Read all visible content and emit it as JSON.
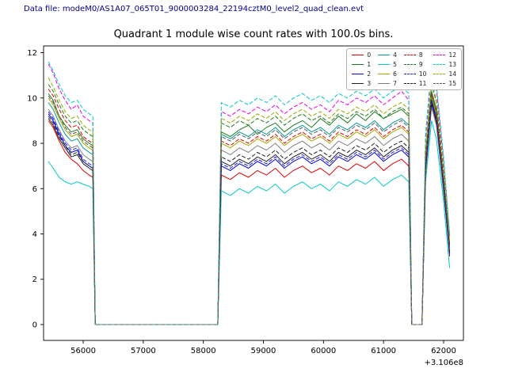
{
  "header": {
    "data_file_label": "Data file: modeM0/AS1A07_065T01_9000003284_22194cztM0_level2_quad_clean.evt"
  },
  "chart_data": {
    "type": "line",
    "title": "Quadrant 1 module wise count rates with 100.0s bins.",
    "xlabel": "",
    "ylabel": "",
    "x_axis_offset": "+3.106e8",
    "xlim": [
      55340,
      62330
    ],
    "ylim": [
      -0.7,
      12.3
    ],
    "xticks": [
      56000,
      57000,
      58000,
      59000,
      60000,
      61000,
      62000
    ],
    "yticks": [
      0,
      2,
      4,
      6,
      8,
      10,
      12
    ],
    "grid": false,
    "legend": {
      "position": "upper right",
      "ncol": 4
    },
    "x": [
      55420,
      55500,
      55600,
      55700,
      55800,
      55900,
      56000,
      56100,
      56160,
      56200,
      58240,
      58300,
      58450,
      58600,
      58750,
      58900,
      59050,
      59200,
      59350,
      59500,
      59650,
      59800,
      59950,
      60100,
      60250,
      60400,
      60550,
      60700,
      60850,
      61000,
      61150,
      61300,
      61420,
      61470,
      61640,
      61700,
      61800,
      61880,
      62000,
      62100
    ],
    "series": [
      {
        "name": "0",
        "color": "#dc0000",
        "dash": "solid",
        "values": [
          9.0,
          8.7,
          8.1,
          7.6,
          7.3,
          7.1,
          6.8,
          6.6,
          6.5,
          0,
          0,
          6.6,
          6.4,
          6.7,
          6.5,
          6.8,
          6.6,
          6.9,
          6.5,
          6.8,
          7.0,
          6.7,
          6.9,
          6.6,
          7.0,
          6.8,
          7.1,
          6.9,
          7.2,
          6.8,
          7.1,
          7.3,
          7.0,
          0,
          0,
          6.8,
          9.8,
          9.0,
          6.0,
          3.0
        ]
      },
      {
        "name": "1",
        "color": "#1e7a1e",
        "dash": "solid",
        "values": [
          10.2,
          9.9,
          9.2,
          8.8,
          8.5,
          8.6,
          8.2,
          8.0,
          7.9,
          0,
          0,
          8.5,
          8.3,
          8.6,
          8.8,
          8.4,
          8.7,
          8.9,
          8.5,
          8.8,
          9.0,
          8.7,
          9.1,
          8.8,
          9.2,
          8.9,
          9.3,
          9.0,
          9.4,
          9.1,
          9.3,
          9.5,
          9.2,
          0,
          0,
          7.2,
          10.3,
          9.5,
          6.4,
          3.5
        ]
      },
      {
        "name": "2",
        "color": "#0000dd",
        "dash": "solid",
        "values": [
          9.3,
          9.0,
          8.4,
          7.9,
          7.6,
          7.7,
          7.2,
          7.0,
          6.9,
          0,
          0,
          7.0,
          6.8,
          7.1,
          6.9,
          7.2,
          7.0,
          7.3,
          6.9,
          7.2,
          7.4,
          7.1,
          7.3,
          7.0,
          7.4,
          7.2,
          7.5,
          7.3,
          7.6,
          7.2,
          7.5,
          7.7,
          7.4,
          0,
          0,
          6.9,
          9.9,
          9.1,
          6.1,
          3.1
        ]
      },
      {
        "name": "3",
        "color": "#202020",
        "dash": "solid",
        "values": [
          9.1,
          8.8,
          8.2,
          7.8,
          7.4,
          7.5,
          7.1,
          6.9,
          6.8,
          0,
          0,
          7.2,
          7.0,
          7.3,
          7.1,
          7.4,
          7.2,
          7.5,
          7.1,
          7.4,
          7.6,
          7.3,
          7.5,
          7.2,
          7.6,
          7.4,
          7.7,
          7.5,
          7.8,
          7.4,
          7.7,
          7.9,
          7.6,
          0,
          0,
          6.7,
          9.7,
          8.9,
          5.9,
          3.2
        ]
      },
      {
        "name": "4",
        "color": "#009a9a",
        "dash": "solid",
        "values": [
          9.8,
          9.5,
          8.9,
          8.4,
          8.1,
          8.2,
          7.8,
          7.6,
          7.5,
          0,
          0,
          8.4,
          8.2,
          8.5,
          8.3,
          8.6,
          8.4,
          8.7,
          8.3,
          8.6,
          8.8,
          8.5,
          8.7,
          8.4,
          8.8,
          8.6,
          8.9,
          8.7,
          9.0,
          8.6,
          8.9,
          9.1,
          8.8,
          0,
          0,
          7.0,
          10.0,
          9.2,
          6.2,
          3.4
        ]
      },
      {
        "name": "5",
        "color": "#00c8c8",
        "dash": "solid",
        "values": [
          7.2,
          6.9,
          6.5,
          6.3,
          6.2,
          6.3,
          6.2,
          6.1,
          6.0,
          0,
          0,
          5.9,
          5.7,
          6.0,
          5.8,
          6.1,
          5.9,
          6.2,
          5.8,
          6.1,
          6.3,
          6.0,
          6.2,
          5.9,
          6.3,
          6.1,
          6.4,
          6.2,
          6.5,
          6.1,
          6.4,
          6.6,
          6.3,
          0,
          0,
          6.3,
          9.0,
          8.2,
          5.4,
          2.5
        ]
      },
      {
        "name": "6",
        "color": "#a8a800",
        "dash": "solid",
        "values": [
          10.0,
          9.7,
          9.1,
          8.6,
          8.3,
          8.4,
          8.0,
          7.8,
          7.7,
          0,
          0,
          8.0,
          7.8,
          8.1,
          7.9,
          8.2,
          8.0,
          8.3,
          7.9,
          8.2,
          8.4,
          8.1,
          8.3,
          8.0,
          8.4,
          8.2,
          8.5,
          8.3,
          8.6,
          8.2,
          8.5,
          8.7,
          8.4,
          0,
          0,
          7.1,
          10.1,
          9.3,
          6.3,
          3.4
        ]
      },
      {
        "name": "7",
        "color": "#7f7f7f",
        "dash": "solid",
        "values": [
          9.5,
          9.2,
          8.6,
          8.1,
          7.8,
          7.9,
          7.5,
          7.3,
          7.2,
          0,
          0,
          7.7,
          7.5,
          7.8,
          7.6,
          7.9,
          7.7,
          8.0,
          7.6,
          7.9,
          8.1,
          7.8,
          8.0,
          7.7,
          8.1,
          7.9,
          8.2,
          8.0,
          8.3,
          7.9,
          8.2,
          8.4,
          8.1,
          0,
          0,
          6.6,
          9.6,
          8.8,
          5.8,
          3.2
        ]
      },
      {
        "name": "8",
        "color": "#dc0000",
        "dash": "dashed",
        "values": [
          10.4,
          10.1,
          9.5,
          9.0,
          8.7,
          8.8,
          8.3,
          8.1,
          8.0,
          0,
          0,
          8.1,
          7.9,
          8.2,
          8.0,
          8.3,
          8.1,
          8.4,
          8.0,
          8.3,
          8.5,
          8.2,
          8.4,
          8.1,
          8.5,
          8.3,
          8.6,
          8.4,
          8.7,
          8.3,
          8.6,
          8.8,
          8.5,
          0,
          0,
          7.2,
          10.2,
          9.4,
          6.4,
          3.5
        ]
      },
      {
        "name": "9",
        "color": "#1e7a1e",
        "dash": "dashed",
        "values": [
          10.6,
          10.3,
          9.7,
          9.2,
          8.9,
          9.0,
          8.6,
          8.4,
          8.3,
          0,
          0,
          8.9,
          8.7,
          9.0,
          8.8,
          9.1,
          8.9,
          9.2,
          8.8,
          9.1,
          9.3,
          9.0,
          9.2,
          8.9,
          9.3,
          9.1,
          9.4,
          9.2,
          9.5,
          9.1,
          9.4,
          9.6,
          9.3,
          0,
          0,
          7.6,
          10.6,
          9.8,
          6.8,
          3.6
        ]
      },
      {
        "name": "10",
        "color": "#1a1aff",
        "dash": "dashed",
        "values": [
          9.4,
          9.1,
          8.5,
          8.0,
          7.7,
          7.8,
          7.3,
          7.1,
          7.0,
          0,
          0,
          7.1,
          6.9,
          7.2,
          7.0,
          7.3,
          7.1,
          7.4,
          7.0,
          7.3,
          7.5,
          7.2,
          7.4,
          7.1,
          7.5,
          7.3,
          7.6,
          7.4,
          7.7,
          7.3,
          7.6,
          7.8,
          7.5,
          0,
          0,
          6.8,
          9.8,
          9.0,
          6.0,
          3.1
        ]
      },
      {
        "name": "11",
        "color": "#202020",
        "dash": "dashed",
        "values": [
          9.2,
          8.9,
          8.3,
          7.9,
          7.5,
          7.6,
          7.2,
          7.0,
          6.9,
          0,
          0,
          7.4,
          7.2,
          7.5,
          7.3,
          7.6,
          7.4,
          7.7,
          7.3,
          7.6,
          7.8,
          7.5,
          7.7,
          7.4,
          7.8,
          7.6,
          7.9,
          7.7,
          8.0,
          7.6,
          7.9,
          8.1,
          7.8,
          0,
          0,
          6.9,
          9.9,
          9.1,
          6.1,
          3.2
        ]
      },
      {
        "name": "12",
        "color": "#e600e6",
        "dash": "dashed",
        "values": [
          11.5,
          11.1,
          10.4,
          9.9,
          9.5,
          9.7,
          9.2,
          9.0,
          8.9,
          0,
          0,
          9.4,
          9.2,
          9.5,
          9.3,
          9.6,
          9.4,
          9.7,
          9.3,
          9.6,
          9.8,
          9.5,
          9.7,
          9.4,
          9.9,
          9.7,
          10.0,
          9.8,
          10.1,
          9.7,
          10.0,
          10.3,
          9.9,
          0,
          0,
          8.2,
          11.3,
          10.4,
          7.2,
          3.9
        ]
      },
      {
        "name": "13",
        "color": "#00c8c8",
        "dash": "dashed",
        "values": [
          11.6,
          11.2,
          10.6,
          10.1,
          9.8,
          9.9,
          9.5,
          9.3,
          9.2,
          0,
          0,
          9.8,
          9.6,
          9.9,
          9.7,
          10.0,
          9.8,
          10.1,
          9.7,
          10.0,
          10.2,
          9.9,
          10.1,
          9.8,
          10.2,
          10.0,
          10.3,
          10.1,
          10.4,
          10.0,
          10.3,
          10.5,
          10.2,
          0,
          0,
          8.4,
          11.5,
          10.6,
          7.4,
          4.0
        ]
      },
      {
        "name": "14",
        "color": "#9aa800",
        "dash": "dashed",
        "values": [
          10.9,
          10.5,
          9.9,
          9.4,
          9.1,
          9.2,
          8.8,
          8.6,
          8.5,
          0,
          0,
          9.1,
          8.9,
          9.2,
          9.0,
          9.3,
          9.1,
          9.4,
          9.0,
          9.3,
          9.5,
          9.2,
          9.4,
          9.1,
          9.5,
          9.3,
          9.6,
          9.4,
          9.7,
          9.3,
          9.6,
          9.8,
          9.5,
          0,
          0,
          7.8,
          10.8,
          9.9,
          7.0,
          3.7
        ]
      },
      {
        "name": "15",
        "color": "#5a5a5a",
        "dash": "dashed",
        "values": [
          10.1,
          9.8,
          9.2,
          8.7,
          8.4,
          8.5,
          8.1,
          7.9,
          7.8,
          0,
          0,
          8.3,
          8.1,
          8.4,
          8.2,
          8.5,
          8.3,
          8.6,
          8.2,
          8.5,
          8.7,
          8.4,
          8.6,
          8.3,
          8.7,
          8.5,
          8.8,
          8.6,
          8.9,
          8.5,
          8.8,
          9.0,
          8.7,
          0,
          0,
          7.3,
          10.2,
          9.4,
          6.5,
          3.4
        ]
      }
    ]
  }
}
